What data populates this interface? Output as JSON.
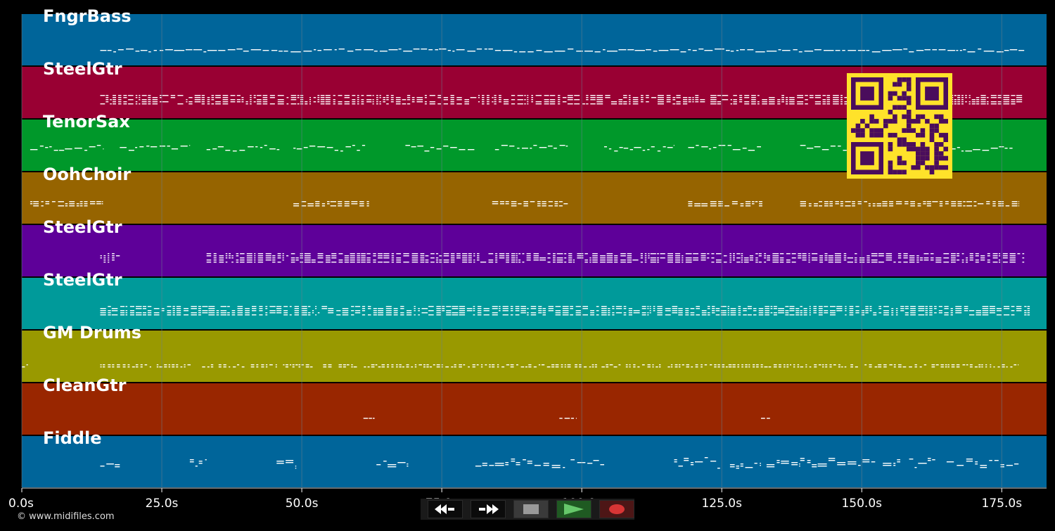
{
  "colors": {
    "background": "#000000",
    "gridline": "#6a7f8c",
    "note": "#ffffff",
    "qr_fg": "#4a0d5c",
    "qr_bg": "#ffe22a"
  },
  "timeline": {
    "start_seconds": 0,
    "end_seconds": 183,
    "ticks": [
      {
        "value": 0,
        "label": "0.0s"
      },
      {
        "value": 25,
        "label": "25.0s"
      },
      {
        "value": 50,
        "label": "50.0s"
      },
      {
        "value": 75,
        "label": "75.0s"
      },
      {
        "value": 100,
        "label": "100.0s"
      },
      {
        "value": 125,
        "label": "125.0s"
      },
      {
        "value": 150,
        "label": "150.0s"
      },
      {
        "value": 175,
        "label": "175.0s"
      }
    ]
  },
  "tracks": [
    {
      "name": "FngrBass",
      "color": "#00659a",
      "style": "bass",
      "segments": [
        [
          14,
          179
        ]
      ]
    },
    {
      "name": "SteelGtr",
      "color": "#990033",
      "style": "dense",
      "segments": [
        [
          14,
          179
        ]
      ]
    },
    {
      "name": "TenorSax",
      "color": "#00982a",
      "style": "melody",
      "segments": [
        [
          1.5,
          14.5
        ],
        [
          17.5,
          30
        ],
        [
          33,
          46
        ],
        [
          48.5,
          61.5
        ],
        [
          68.5,
          81
        ],
        [
          84.5,
          97.5
        ],
        [
          104,
          116.5
        ],
        [
          119,
          132
        ],
        [
          139,
          151
        ],
        [
          152,
          177
        ]
      ]
    },
    {
      "name": "OohChoir",
      "color": "#966400",
      "style": "choir",
      "segments": [
        [
          1.5,
          14.5
        ],
        [
          48.5,
          62
        ],
        [
          84,
          97.5
        ],
        [
          119,
          132.5
        ],
        [
          139,
          178
        ]
      ]
    },
    {
      "name": "SteelGtr",
      "color": "#5e0099",
      "style": "dense",
      "segments": [
        [
          14,
          17.5
        ],
        [
          33,
          179
        ]
      ]
    },
    {
      "name": "SteelGtr",
      "color": "#009a9a",
      "style": "dense",
      "segments": [
        [
          14,
          180
        ]
      ]
    },
    {
      "name": "GM Drums",
      "color": "#999900",
      "style": "drums",
      "segments": [
        [
          0,
          1.5
        ],
        [
          14,
          178
        ]
      ]
    },
    {
      "name": "CleanGtr",
      "color": "#992600",
      "style": "sparse",
      "segments": [
        [
          61,
          63
        ],
        [
          96,
          99
        ],
        [
          132,
          134
        ]
      ]
    },
    {
      "name": "Fiddle",
      "color": "#00659a",
      "style": "fiddle",
      "segments": [
        [
          14,
          17.5
        ],
        [
          30,
          33
        ],
        [
          45.5,
          49
        ],
        [
          62.5,
          69
        ],
        [
          81,
          97
        ],
        [
          98,
          104
        ],
        [
          116.5,
          132
        ],
        [
          133,
          139
        ],
        [
          139,
          178
        ]
      ]
    }
  ],
  "footer": {
    "copyright": "© www.midifiles.com"
  },
  "transport": {
    "rewind_icon": "rewind-icon",
    "fast_forward_icon": "fast-forward-icon",
    "stop_icon": "stop-icon",
    "play_icon": "play-icon",
    "record_icon": "record-icon"
  }
}
